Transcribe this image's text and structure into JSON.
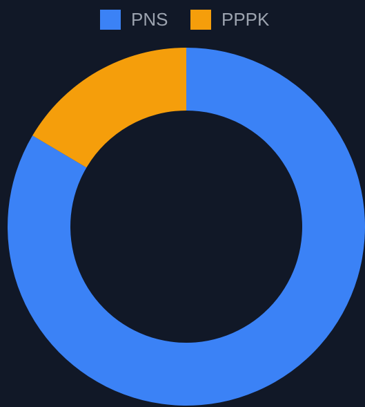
{
  "chart_data": {
    "type": "doughnut",
    "categories": [
      "PNS",
      "PPPK"
    ],
    "values": [
      83.5,
      16.5
    ],
    "colors": [
      "#3b82f6",
      "#f59e0b"
    ],
    "legend": "top"
  }
}
